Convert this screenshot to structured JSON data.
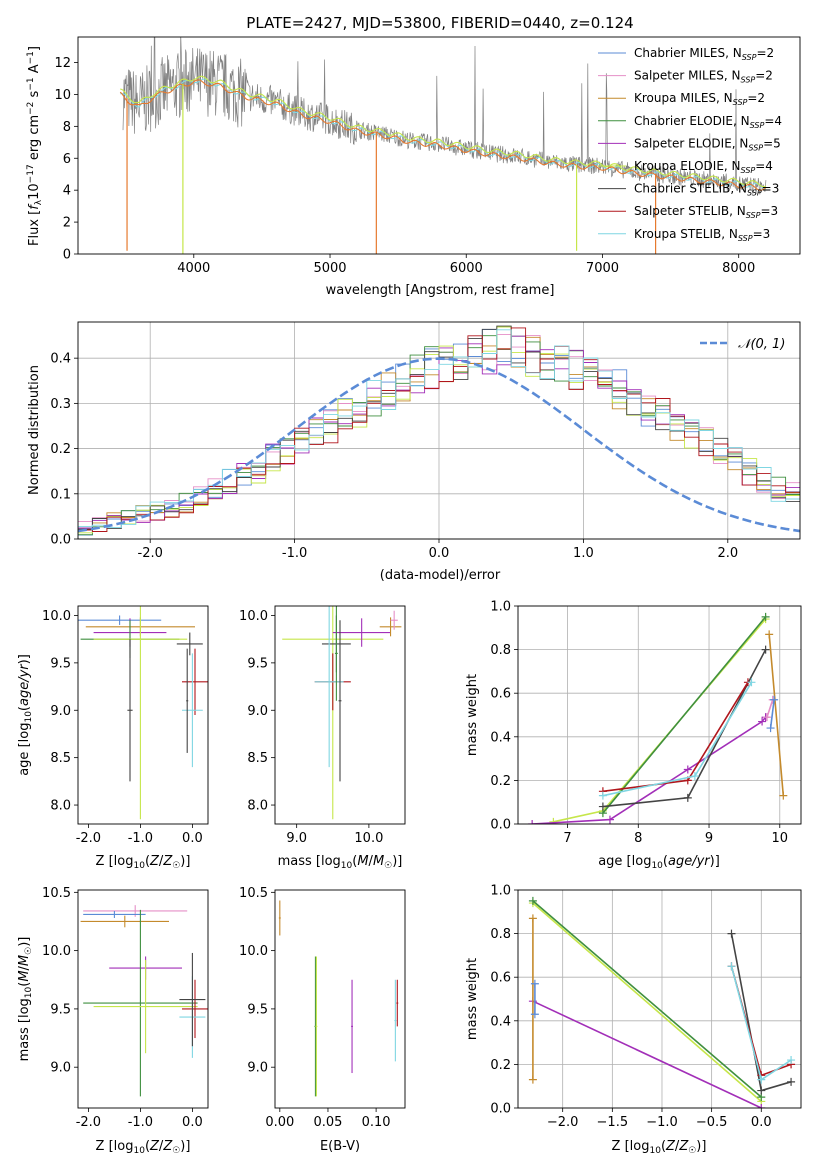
{
  "figure_title": "PLATE=2427, MJD=53800, FIBERID=0440, z=0.124",
  "colors": {
    "Chabrier MILES": "#5b8bd6",
    "Salpeter MILES": "#e58fc7",
    "Kroupa MILES": "#c48a2c",
    "Chabrier ELODIE": "#3f8f3f",
    "Salpeter ELODIE": "#a22fb8",
    "Kroupa ELODIE": "#c6e64a",
    "Chabrier STELIB": "#444444",
    "Salpeter STELIB": "#b0161c",
    "Kroupa STELIB": "#7fd6e2",
    "data": "#808080",
    "fit_main": "#e67a2e",
    "gauss": "#5b8bd6"
  },
  "chart_data": [
    {
      "id": "spectrum",
      "type": "line",
      "title": "PLATE=2427, MJD=53800, FIBERID=0440, z=0.124",
      "xlabel": "wavelength [Angstrom, rest frame]",
      "ylabel": "Flux [f_λ 10⁻¹⁷ erg cm⁻² s⁻¹ A⁻¹]",
      "xlim": [
        3150,
        8450
      ],
      "ylim": [
        0,
        13.6
      ],
      "xticks": [
        4000,
        5000,
        6000,
        7000,
        8000
      ],
      "yticks": [
        0,
        2,
        4,
        6,
        8,
        10,
        12
      ],
      "legend_position": "top-right",
      "legend": [
        {
          "series": "Chabrier MILES",
          "label": "Chabrier MILES, N",
          "sub": "SSP",
          "tail": "=2"
        },
        {
          "series": "Salpeter MILES",
          "label": "Salpeter MILES, N",
          "sub": "SSP",
          "tail": "=2"
        },
        {
          "series": "Kroupa MILES",
          "label": "Kroupa MILES, N",
          "sub": "SSP",
          "tail": "=2"
        },
        {
          "series": "Chabrier ELODIE",
          "label": "Chabrier ELODIE, N",
          "sub": "SSP",
          "tail": "=4"
        },
        {
          "series": "Salpeter ELODIE",
          "label": "Salpeter ELODIE, N",
          "sub": "SSP",
          "tail": "=5"
        },
        {
          "series": "Kroupa ELODIE",
          "label": "Kroupa ELODIE, N",
          "sub": "SSP",
          "tail": "=4"
        },
        {
          "series": "Chabrier STELIB",
          "label": "Chabrier STELIB, N",
          "sub": "SSP",
          "tail": "=3"
        },
        {
          "series": "Salpeter STELIB",
          "label": "Salpeter STELIB, N",
          "sub": "SSP",
          "tail": "=3"
        },
        {
          "series": "Kroupa STELIB",
          "label": "Kroupa STELIB, N",
          "sub": "SSP",
          "tail": "=3"
        }
      ],
      "continuum": {
        "wavelength": [
          3460,
          3520,
          3600,
          3700,
          3800,
          3900,
          4000,
          4100,
          4200,
          4300,
          4400,
          4600,
          4800,
          5000,
          5200,
          5400,
          5600,
          5800,
          6000,
          6200,
          6400,
          6600,
          6800,
          7000,
          7200,
          7400,
          7600,
          7800,
          8000,
          8200
        ],
        "flux": [
          10.1,
          9.7,
          9.3,
          9.9,
          10.3,
          10.6,
          10.9,
          10.8,
          10.6,
          10.2,
          9.9,
          9.5,
          8.8,
          8.4,
          7.8,
          7.5,
          7.1,
          6.9,
          6.6,
          6.3,
          6.1,
          5.8,
          5.6,
          5.5,
          5.2,
          5.0,
          4.8,
          4.6,
          4.4,
          4.2
        ]
      },
      "dips": [
        {
          "wavelength": 3510,
          "flux": 0.2
        },
        {
          "wavelength": 3920,
          "flux": 0.0
        },
        {
          "wavelength": 5340,
          "flux": 0.0
        },
        {
          "wavelength": 6810,
          "flux": 0.2
        },
        {
          "wavelength": 7390,
          "flux": 0.0
        }
      ]
    },
    {
      "id": "residuals",
      "type": "histogram",
      "xlabel": "(data-model)/error",
      "ylabel": "Normed distribution",
      "xlim": [
        -2.5,
        2.5
      ],
      "ylim": [
        0,
        0.48
      ],
      "xticks": [
        -2,
        -1,
        0,
        1,
        2
      ],
      "yticks": [
        0.0,
        0.1,
        0.2,
        0.3,
        0.4
      ],
      "grid": true,
      "bins": {
        "start": -2.5,
        "width": 0.1
      },
      "gaussian_label": "𝒩(0, 1)",
      "legend_position": "top-right",
      "base_density": [
        0.025,
        0.03,
        0.04,
        0.05,
        0.055,
        0.06,
        0.07,
        0.08,
        0.09,
        0.11,
        0.125,
        0.14,
        0.155,
        0.18,
        0.2,
        0.21,
        0.235,
        0.25,
        0.27,
        0.29,
        0.31,
        0.33,
        0.35,
        0.37,
        0.38,
        0.39,
        0.4,
        0.41,
        0.415,
        0.42,
        0.42,
        0.41,
        0.4,
        0.39,
        0.37,
        0.36,
        0.35,
        0.33,
        0.31,
        0.29,
        0.27,
        0.25,
        0.23,
        0.21,
        0.19,
        0.17,
        0.15,
        0.13,
        0.11,
        0.1
      ]
    },
    {
      "id": "age_vs_Z",
      "type": "errorbar",
      "xlabel": "Z [log10(Z/Z☉)]",
      "ylabel": "age [log10(age/yr)]",
      "xlim": [
        -2.2,
        0.3
      ],
      "ylim": [
        7.8,
        10.1
      ],
      "xticks": [
        -2,
        -1,
        0
      ],
      "yticks": [
        8.0,
        8.5,
        9.0,
        9.5,
        10.0
      ],
      "points": [
        {
          "series": "Chabrier MILES",
          "x": -1.4,
          "y": 9.95,
          "xerr": 0.8,
          "yerr": 0.05
        },
        {
          "series": "Kroupa MILES",
          "x": -1.0,
          "y": 9.88,
          "xerr": 1.05,
          "yerr": 0.1
        },
        {
          "series": "Salpeter ELODIE",
          "x": -1.2,
          "y": 9.82,
          "xerr": 0.7,
          "yerr": 0.15
        },
        {
          "series": "Chabrier ELODIE",
          "x": -1.2,
          "y": 9.75,
          "xerr": 0.95,
          "yerr": 0.2
        },
        {
          "series": "Kroupa ELODIE",
          "x": -1.0,
          "y": 9.75,
          "xerr": 0.9,
          "yerr": 1.9
        },
        {
          "series": "Chabrier STELIB",
          "x": -0.05,
          "y": 9.7,
          "xerr": 0.25,
          "yerr": 0.12
        },
        {
          "series": "Salpeter STELIB",
          "x": 0.05,
          "y": 9.3,
          "xerr": 0.25,
          "yerr": 0.35
        },
        {
          "series": "Kroupa STELIB",
          "x": 0.0,
          "y": 9.0,
          "xerr": 0.2,
          "yerr": 0.6
        },
        {
          "series": "Chabrier STELIB",
          "x": -0.1,
          "y": 9.1,
          "xerr": 0.02,
          "yerr": 0.55
        },
        {
          "series": "Chabrier STELIB",
          "x": -1.2,
          "y": 9.0,
          "xerr": 0.05,
          "yerr": 0.75
        }
      ]
    },
    {
      "id": "age_vs_mass",
      "type": "errorbar",
      "xlabel": "mass [log10(M/M☉)]",
      "ylabel": "",
      "xlim": [
        8.7,
        10.5
      ],
      "ylim": [
        7.8,
        10.1
      ],
      "xticks": [
        9,
        10
      ],
      "yticks": [
        8.0,
        8.5,
        9.0,
        9.5,
        10.0
      ],
      "points": [
        {
          "series": "Kroupa ELODIE",
          "x": 9.5,
          "y": 9.75,
          "xerr": 0.7,
          "yerr": 1.9
        },
        {
          "series": "Salpeter ELODIE",
          "x": 9.9,
          "y": 9.82,
          "xerr": 0.4,
          "yerr": 0.15
        },
        {
          "series": "Kroupa MILES",
          "x": 10.3,
          "y": 9.88,
          "xerr": 0.15,
          "yerr": 0.1
        },
        {
          "series": "Salpeter MILES",
          "x": 10.35,
          "y": 9.95,
          "xerr": 0.05,
          "yerr": 0.1
        },
        {
          "series": "Chabrier STELIB",
          "x": 9.55,
          "y": 9.7,
          "xerr": 0.2,
          "yerr": 0.3
        },
        {
          "series": "Salpeter STELIB",
          "x": 9.5,
          "y": 9.3,
          "xerr": 0.25,
          "yerr": 0.3
        },
        {
          "series": "Kroupa STELIB",
          "x": 9.45,
          "y": 9.3,
          "xerr": 0.2,
          "yerr": 0.9
        },
        {
          "series": "Chabrier ELODIE",
          "x": 9.55,
          "y": 9.6,
          "xerr": 0.02,
          "yerr": 0.5
        },
        {
          "series": "Chabrier STELIB",
          "x": 9.6,
          "y": 9.1,
          "xerr": 0.02,
          "yerr": 0.85
        }
      ]
    },
    {
      "id": "mw_vs_age",
      "type": "line",
      "xlabel": "age [log10(age/yr)]",
      "ylabel": "mass weight",
      "xlim": [
        6.3,
        10.3
      ],
      "ylim": [
        0,
        1.0
      ],
      "xticks": [
        7,
        8,
        9,
        10
      ],
      "yticks": [
        0.0,
        0.2,
        0.4,
        0.6,
        0.8,
        1.0
      ],
      "grid": true,
      "series": [
        {
          "name": "Kroupa ELODIE",
          "x": [
            6.8,
            7.5,
            9.8
          ],
          "y": [
            0.01,
            0.06,
            0.94
          ]
        },
        {
          "name": "Chabrier ELODIE",
          "x": [
            7.5,
            9.8
          ],
          "y": [
            0.05,
            0.95
          ]
        },
        {
          "name": "Salpeter ELODIE",
          "x": [
            6.5,
            7.6,
            8.7,
            9.75,
            9.8
          ],
          "y": [
            0.0,
            0.02,
            0.25,
            0.47,
            0.49
          ]
        },
        {
          "name": "Chabrier STELIB",
          "x": [
            7.5,
            8.7,
            9.8
          ],
          "y": [
            0.08,
            0.12,
            0.8
          ]
        },
        {
          "name": "Salpeter STELIB",
          "x": [
            7.5,
            8.7,
            9.55
          ],
          "y": [
            0.15,
            0.2,
            0.65
          ]
        },
        {
          "name": "Kroupa STELIB",
          "x": [
            7.5,
            8.8,
            9.6
          ],
          "y": [
            0.13,
            0.22,
            0.65
          ]
        },
        {
          "name": "Kroupa MILES",
          "x": [
            9.85,
            10.05
          ],
          "y": [
            0.87,
            0.13
          ]
        },
        {
          "name": "Salpeter MILES",
          "x": [
            9.82,
            9.9
          ],
          "y": [
            0.49,
            0.57
          ]
        },
        {
          "name": "Chabrier MILES",
          "x": [
            9.87,
            9.92
          ],
          "y": [
            0.44,
            0.57
          ]
        }
      ]
    },
    {
      "id": "mass_vs_Z",
      "type": "errorbar",
      "xlabel": "Z [log10(Z/Z☉)]",
      "ylabel": "mass [log10(M/M☉)]",
      "xlim": [
        -2.2,
        0.3
      ],
      "ylim": [
        8.65,
        10.52
      ],
      "xticks": [
        -2,
        -1,
        0
      ],
      "yticks": [
        9.0,
        9.5,
        10.0,
        10.5
      ],
      "points": [
        {
          "series": "Salpeter MILES",
          "x": -1.1,
          "y": 10.34,
          "xerr": 1.0,
          "yerr": 0.05
        },
        {
          "series": "Chabrier MILES",
          "x": -1.5,
          "y": 10.31,
          "xerr": 0.6,
          "yerr": 0.03
        },
        {
          "series": "Kroupa MILES",
          "x": -1.3,
          "y": 10.25,
          "xerr": 0.85,
          "yerr": 0.05
        },
        {
          "series": "Salpeter ELODIE",
          "x": -0.9,
          "y": 9.85,
          "xerr": 0.7,
          "yerr": 0.1
        },
        {
          "series": "Chabrier ELODIE",
          "x": -1.0,
          "y": 9.55,
          "xerr": 1.1,
          "yerr": 0.8
        },
        {
          "series": "Kroupa ELODIE",
          "x": -0.9,
          "y": 9.52,
          "xerr": 1.0,
          "yerr": 0.4
        },
        {
          "series": "Salpeter STELIB",
          "x": 0.05,
          "y": 9.5,
          "xerr": 0.25,
          "yerr": 0.25
        },
        {
          "series": "Kroupa STELIB",
          "x": 0.0,
          "y": 9.43,
          "xerr": 0.25,
          "yerr": 0.35
        },
        {
          "series": "Chabrier STELIB",
          "x": 0.0,
          "y": 9.58,
          "xerr": 0.25,
          "yerr": 0.4
        }
      ]
    },
    {
      "id": "mass_vs_ebv",
      "type": "errorbar",
      "xlabel": "E(B-V)",
      "ylabel": "",
      "xlim": [
        -0.005,
        0.13
      ],
      "ylim": [
        8.65,
        10.52
      ],
      "xticks": [
        0.0,
        0.05,
        0.1
      ],
      "yticks": [
        9.0,
        9.5,
        10.0,
        10.5
      ],
      "points": [
        {
          "series": "Kroupa MILES",
          "x": 0.0,
          "y": 10.28,
          "xerr": 0.001,
          "yerr": 0.15
        },
        {
          "series": "Chabrier ELODIE",
          "x": 0.037,
          "y": 9.35,
          "xerr": 0.001,
          "yerr": 0.6
        },
        {
          "series": "Kroupa ELODIE",
          "x": 0.038,
          "y": 9.35,
          "xerr": 0.001,
          "yerr": 0.6
        },
        {
          "series": "Salpeter ELODIE",
          "x": 0.075,
          "y": 9.35,
          "xerr": 0.001,
          "yerr": 0.4
        },
        {
          "series": "Kroupa STELIB",
          "x": 0.12,
          "y": 9.4,
          "xerr": 0.001,
          "yerr": 0.35
        },
        {
          "series": "Salpeter STELIB",
          "x": 0.122,
          "y": 9.55,
          "xerr": 0.001,
          "yerr": 0.2
        }
      ]
    },
    {
      "id": "mw_vs_Z",
      "type": "line",
      "xlabel": "Z [log10(Z/Z☉)]",
      "ylabel": "mass weight",
      "xlim": [
        -2.45,
        0.4
      ],
      "ylim": [
        0,
        1.0
      ],
      "xticks": [
        -2.0,
        -1.5,
        -1.0,
        -0.5,
        0.0
      ],
      "yticks": [
        0.0,
        0.2,
        0.4,
        0.6,
        0.8,
        1.0
      ],
      "grid": true,
      "series": [
        {
          "name": "Kroupa ELODIE",
          "x": [
            -2.3,
            0.0
          ],
          "y": [
            0.94,
            0.03
          ]
        },
        {
          "name": "Chabrier ELODIE",
          "x": [
            -2.3,
            0.0
          ],
          "y": [
            0.95,
            0.05
          ]
        },
        {
          "name": "Salpeter ELODIE",
          "x": [
            -2.3,
            0.0
          ],
          "y": [
            0.49,
            0.0
          ]
        },
        {
          "name": "Kroupa MILES",
          "x": [
            -2.3,
            -2.3
          ],
          "y": [
            0.13,
            0.87
          ]
        },
        {
          "name": "Chabrier MILES",
          "x": [
            -2.28,
            -2.28
          ],
          "y": [
            0.43,
            0.57
          ]
        },
        {
          "name": "Chabrier STELIB",
          "x": [
            -0.3,
            0.0,
            0.3
          ],
          "y": [
            0.8,
            0.08,
            0.12
          ]
        },
        {
          "name": "Salpeter STELIB",
          "x": [
            -0.3,
            0.0,
            0.3
          ],
          "y": [
            0.65,
            0.15,
            0.2
          ]
        },
        {
          "name": "Kroupa STELIB",
          "x": [
            -0.3,
            0.0,
            0.3
          ],
          "y": [
            0.65,
            0.13,
            0.22
          ]
        }
      ]
    }
  ]
}
